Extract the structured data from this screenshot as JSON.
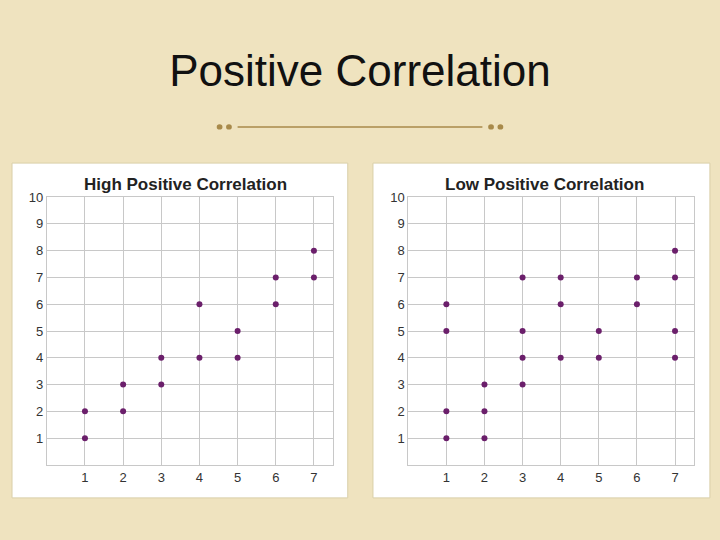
{
  "title": "Positive Correlation",
  "chart_data": [
    {
      "type": "scatter",
      "title": "High Positive Correlation",
      "x": [
        1,
        1,
        2,
        2,
        3,
        3,
        4,
        4,
        5,
        5,
        6,
        6,
        7,
        7
      ],
      "values": [
        1,
        2,
        2,
        3,
        3,
        4,
        4,
        6,
        4,
        5,
        6,
        7,
        7,
        8
      ],
      "color": "#6b1f6b",
      "marker": "circle",
      "xlim": [
        0,
        7.5
      ],
      "ylim": [
        0,
        10
      ],
      "xticks": [
        1,
        2,
        3,
        4,
        5,
        6,
        7
      ],
      "yticks": [
        1,
        2,
        3,
        4,
        5,
        6,
        7,
        8,
        9,
        10
      ],
      "grid": true
    },
    {
      "type": "scatter",
      "title": "Low Positive Correlation",
      "x": [
        1,
        1,
        1,
        1,
        2,
        2,
        2,
        3,
        3,
        3,
        3,
        4,
        4,
        4,
        5,
        5,
        6,
        6,
        7,
        7,
        7,
        7
      ],
      "values": [
        1,
        2,
        5,
        6,
        1,
        2,
        3,
        3,
        4,
        5,
        7,
        4,
        6,
        7,
        4,
        5,
        6,
        7,
        4,
        5,
        7,
        8
      ],
      "color": "#6b1f6b",
      "marker": "circle",
      "xlim": [
        0,
        7.5
      ],
      "ylim": [
        0,
        10
      ],
      "xticks": [
        1,
        2,
        3,
        4,
        5,
        6,
        7
      ],
      "yticks": [
        1,
        2,
        3,
        4,
        5,
        6,
        7,
        8,
        9,
        10
      ],
      "grid": true
    }
  ]
}
